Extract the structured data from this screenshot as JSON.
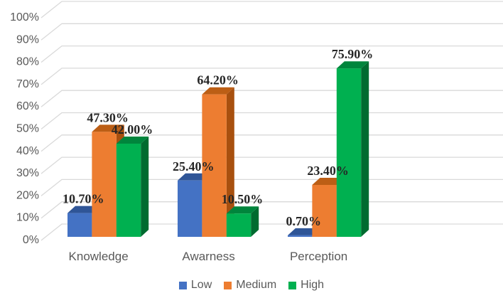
{
  "chart_data": {
    "type": "bar",
    "projection": "3d",
    "title": "",
    "xlabel": "",
    "ylabel": "",
    "categories": [
      "Knowledge",
      "Awarness",
      "Perception"
    ],
    "series": [
      {
        "name": "Low",
        "color": "#4472C4",
        "top_color": "#2F5597",
        "side_color": "#24468C",
        "values": [
          10.7,
          25.4,
          0.7
        ],
        "data_labels": [
          "10.70%",
          "25.40%",
          "0.70%"
        ]
      },
      {
        "name": "Medium",
        "color": "#ED7D31",
        "top_color": "#BC5E15",
        "side_color": "#A8500F",
        "values": [
          47.3,
          64.2,
          23.4
        ],
        "data_labels": [
          "47.30%",
          "64.20%",
          "23.40%"
        ]
      },
      {
        "name": "High",
        "color": "#00B050",
        "top_color": "#00853C",
        "side_color": "#006B30",
        "values": [
          42.0,
          10.5,
          75.9
        ],
        "data_labels": [
          "42.00%",
          "10.50%",
          "75.90%"
        ]
      }
    ],
    "y_axis": {
      "min": 0,
      "max": 100,
      "step": 10,
      "tick_labels": [
        "0%",
        "10%",
        "20%",
        "30%",
        "40%",
        "50%",
        "60%",
        "70%",
        "80%",
        "90%",
        "100%"
      ]
    },
    "grid": true,
    "legend_position": "bottom"
  },
  "legend": {
    "items": [
      {
        "label": "Low",
        "color": "#4472C4"
      },
      {
        "label": "Medium",
        "color": "#ED7D31"
      },
      {
        "label": "High",
        "color": "#00B050"
      }
    ]
  },
  "colors": {
    "background": "#FFFFFF",
    "gridline": "#D9D9D9",
    "axis_text": "#595959",
    "data_label_text": "#262626"
  }
}
